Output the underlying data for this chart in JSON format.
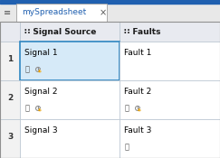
{
  "tab_title": "mySpreadsheet",
  "col_headers": [
    "∷ Signal Source",
    "∷ Faults"
  ],
  "row_labels": [
    "1",
    "2",
    "3"
  ],
  "cell_data": [
    [
      "Signal 1",
      "Fault 1"
    ],
    [
      "Signal 2",
      "Fault 2"
    ],
    [
      "Signal 3",
      "Fault 3"
    ]
  ],
  "has_link": [
    [
      true,
      false
    ],
    [
      true,
      true
    ],
    [
      false,
      true
    ]
  ],
  "has_change_icon": [
    [
      true,
      false
    ],
    [
      true,
      true
    ],
    [
      false,
      false
    ]
  ],
  "selected_row": 0,
  "selected_col": 0,
  "selected_bg": "#d6eaf8",
  "selected_border": "#2e86c1",
  "header_bg": "#e8eaf0",
  "row_num_bg": "#f2f2f2",
  "grid_color": "#b8c4d0",
  "tab_blue": "#2060b0",
  "tab_bar_color": "#2060b0",
  "text_color": "#000000",
  "row_num_text": "#333333",
  "link_color": "#555555",
  "clock_color": "#909090",
  "warn_color": "#e8a000"
}
